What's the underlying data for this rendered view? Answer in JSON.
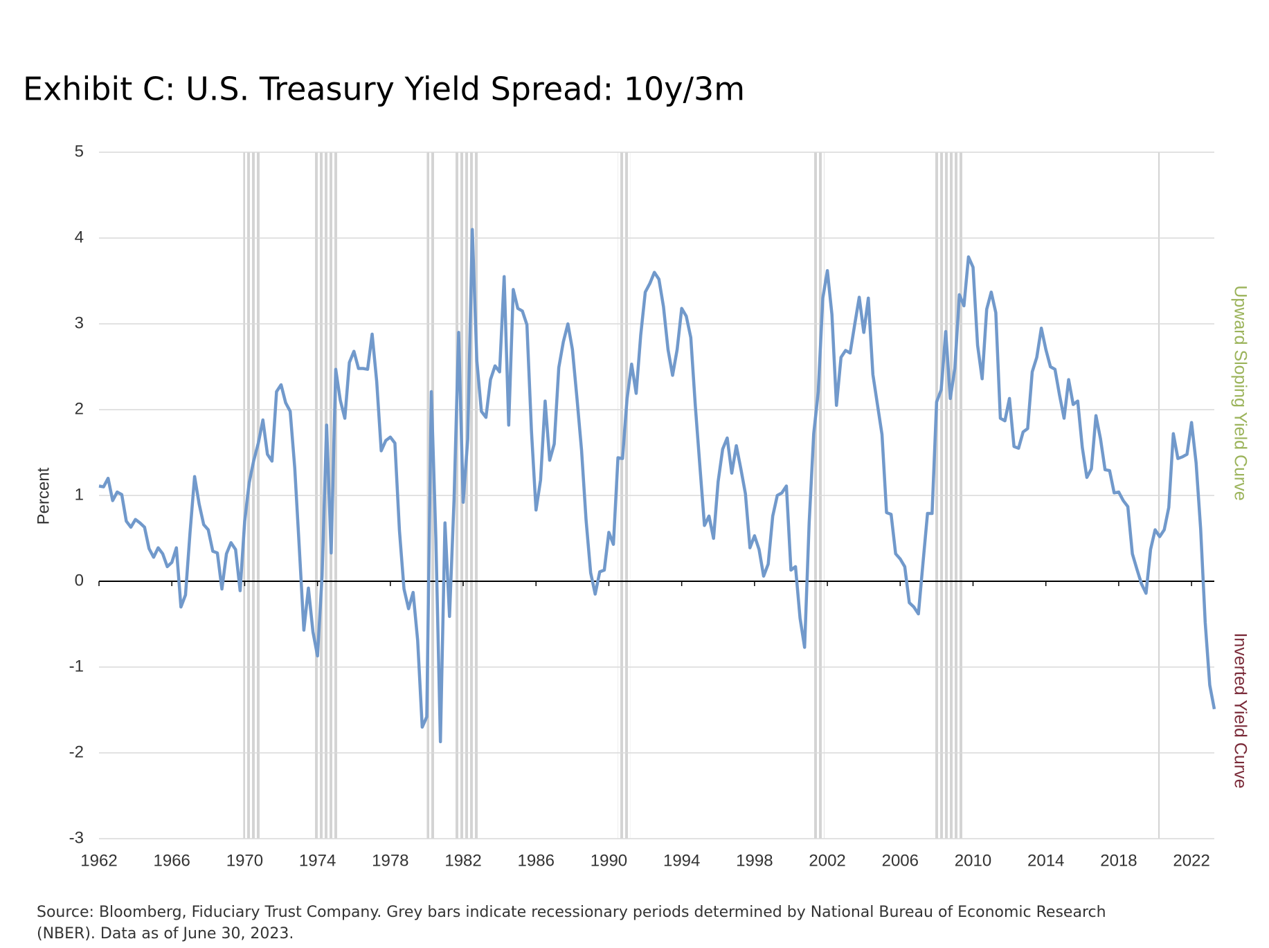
{
  "chart_data": {
    "type": "line",
    "title": "Exhibit C: U.S. Treasury Yield Spread: 10y/3m",
    "ylabel": "Percent",
    "annotations": [
      "Upward Sloping Yield Curve",
      "Inverted Yield Curve"
    ],
    "source": [
      "Source: Bloomberg, Fiduciary Trust Company. Grey bars indicate recessionary periods determined by National Bureau of Economic Research",
      "(NBER). Data as of June 30, 2023."
    ],
    "xlim": [
      1962,
      2023.25
    ],
    "xticks": [
      {
        "value": 1962,
        "label": "1962"
      },
      {
        "value": 1966,
        "label": "1966"
      },
      {
        "value": 1970,
        "label": "1970"
      },
      {
        "value": 1974,
        "label": "1974"
      },
      {
        "value": 1978,
        "label": "1978"
      },
      {
        "value": 1982,
        "label": "1982"
      },
      {
        "value": 1986,
        "label": "1986"
      },
      {
        "value": 1990,
        "label": "1990"
      },
      {
        "value": 1994,
        "label": "1994"
      },
      {
        "value": 1998,
        "label": "1998"
      },
      {
        "value": 2002,
        "label": "2002"
      },
      {
        "value": 2006,
        "label": "2006"
      },
      {
        "value": 2010,
        "label": "2010"
      },
      {
        "value": 2014,
        "label": "2014"
      },
      {
        "value": 2018,
        "label": "2018"
      },
      {
        "value": 2022,
        "label": "2022"
      }
    ],
    "ylim": [
      -3,
      5
    ],
    "yticks": [
      -3,
      -2,
      -1,
      0,
      1,
      2,
      3,
      4,
      5
    ],
    "grid": true,
    "recession_color": "#d4d4d4",
    "recessions": [
      [
        1969.92,
        1970.83
      ],
      [
        1973.83,
        1975.17
      ],
      [
        1980.0,
        1980.5
      ],
      [
        1981.5,
        1982.83
      ],
      [
        1990.5,
        1991.17
      ],
      [
        2001.17,
        2001.83
      ],
      [
        2007.92,
        2009.42
      ],
      [
        2020.08,
        2020.25
      ]
    ],
    "x": [
      1962,
      1962.25,
      1962.5,
      1962.75,
      1963,
      1963.25,
      1963.5,
      1963.75,
      1964,
      1964.25,
      1964.5,
      1964.75,
      1965,
      1965.25,
      1965.5,
      1965.75,
      1966,
      1966.25,
      1966.5,
      1966.75,
      1967,
      1967.25,
      1967.5,
      1967.75,
      1968,
      1968.25,
      1968.5,
      1968.75,
      1969,
      1969.25,
      1969.5,
      1969.75,
      1970,
      1970.25,
      1970.5,
      1970.75,
      1971,
      1971.25,
      1971.5,
      1971.75,
      1972,
      1972.25,
      1972.5,
      1972.75,
      1973,
      1973.25,
      1973.5,
      1973.75,
      1974,
      1974.25,
      1974.5,
      1974.75,
      1975,
      1975.25,
      1975.5,
      1975.75,
      1976,
      1976.25,
      1976.5,
      1976.75,
      1977,
      1977.25,
      1977.5,
      1977.75,
      1978,
      1978.25,
      1978.5,
      1978.75,
      1979,
      1979.25,
      1979.5,
      1979.75,
      1980,
      1980.25,
      1980.5,
      1980.75,
      1981,
      1981.25,
      1981.5,
      1981.75,
      1982,
      1982.25,
      1982.5,
      1982.75,
      1983,
      1983.25,
      1983.5,
      1983.75,
      1984,
      1984.25,
      1984.5,
      1984.75,
      1985,
      1985.25,
      1985.5,
      1985.75,
      1986,
      1986.25,
      1986.5,
      1986.75,
      1987,
      1987.25,
      1987.5,
      1987.75,
      1988,
      1988.25,
      1988.5,
      1988.75,
      1989,
      1989.25,
      1989.5,
      1989.75,
      1990,
      1990.25,
      1990.5,
      1990.75,
      1991,
      1991.25,
      1991.5,
      1991.75,
      1992,
      1992.25,
      1992.5,
      1992.75,
      1993,
      1993.25,
      1993.5,
      1993.75,
      1994,
      1994.25,
      1994.5,
      1994.75,
      1995,
      1995.25,
      1995.5,
      1995.75,
      1996,
      1996.25,
      1996.5,
      1996.75,
      1997,
      1997.25,
      1997.5,
      1997.75,
      1998,
      1998.25,
      1998.5,
      1998.75,
      1999,
      1999.25,
      1999.5,
      1999.75,
      2000,
      2000.25,
      2000.5,
      2000.75,
      2001,
      2001.25,
      2001.5,
      2001.75,
      2002,
      2002.25,
      2002.5,
      2002.75,
      2003,
      2003.25,
      2003.5,
      2003.75,
      2004,
      2004.25,
      2004.5,
      2004.75,
      2005,
      2005.25,
      2005.5,
      2005.75,
      2006,
      2006.25,
      2006.5,
      2006.75,
      2007,
      2007.25,
      2007.5,
      2007.75,
      2008,
      2008.25,
      2008.5,
      2008.75,
      2009,
      2009.25,
      2009.5,
      2009.75,
      2010,
      2010.25,
      2010.5,
      2010.75,
      2011,
      2011.25,
      2011.5,
      2011.75,
      2012,
      2012.25,
      2012.5,
      2012.75,
      2013,
      2013.25,
      2013.5,
      2013.75,
      2014,
      2014.25,
      2014.5,
      2014.75,
      2015,
      2015.25,
      2015.5,
      2015.75,
      2016,
      2016.25,
      2016.5,
      2016.75,
      2017,
      2017.25,
      2017.5,
      2017.75,
      2018,
      2018.25,
      2018.5,
      2018.75,
      2019,
      2019.25,
      2019.5,
      2019.75,
      2020,
      2020.25,
      2020.5,
      2020.75,
      2021,
      2021.25,
      2021.5,
      2021.75,
      2022,
      2022.25,
      2022.5,
      2022.75,
      2023,
      2023.25
    ],
    "series": [
      {
        "name": "10y/3m spread",
        "color": "#7199cb",
        "values": [
          1.11,
          1.1,
          1.2,
          0.94,
          1.04,
          1.01,
          0.7,
          0.63,
          0.72,
          0.68,
          0.63,
          0.38,
          0.28,
          0.39,
          0.32,
          0.17,
          0.22,
          0.39,
          -0.3,
          -0.16,
          0.57,
          1.22,
          0.9,
          0.66,
          0.6,
          0.35,
          0.33,
          -0.09,
          0.32,
          0.45,
          0.37,
          -0.11,
          0.7,
          1.15,
          1.41,
          1.61,
          1.88,
          1.48,
          1.4,
          2.21,
          2.29,
          2.08,
          1.98,
          1.32,
          0.39,
          -0.57,
          -0.08,
          -0.59,
          -0.87,
          0.06,
          1.82,
          0.33,
          2.47,
          2.11,
          1.9,
          2.55,
          2.68,
          2.48,
          2.48,
          2.47,
          2.88,
          2.33,
          1.52,
          1.64,
          1.68,
          1.61,
          0.59,
          -0.09,
          -0.32,
          -0.13,
          -0.69,
          -1.7,
          -1.58,
          2.21,
          0.5,
          -1.87,
          0.68,
          -0.41,
          0.96,
          2.9,
          0.92,
          1.66,
          4.1,
          2.57,
          1.98,
          1.91,
          2.35,
          2.51,
          2.44,
          3.55,
          1.82,
          3.4,
          3.18,
          3.15,
          2.99,
          1.75,
          0.83,
          1.18,
          2.1,
          1.41,
          1.6,
          2.49,
          2.79,
          3.0,
          2.7,
          2.13,
          1.53,
          0.71,
          0.1,
          -0.15,
          0.11,
          0.13,
          0.57,
          0.43,
          1.44,
          1.43,
          2.13,
          2.53,
          2.19,
          2.87,
          3.37,
          3.47,
          3.6,
          3.52,
          3.2,
          2.7,
          2.4,
          2.7,
          3.18,
          3.09,
          2.84,
          2.04,
          1.34,
          0.65,
          0.76,
          0.5,
          1.16,
          1.54,
          1.67,
          1.26,
          1.58,
          1.31,
          1.02,
          0.39,
          0.53,
          0.37,
          0.06,
          0.2,
          0.76,
          1.0,
          1.03,
          1.11,
          0.13,
          0.17,
          -0.43,
          -0.77,
          0.68,
          1.72,
          2.21,
          3.3,
          3.62,
          3.11,
          2.05,
          2.61,
          2.69,
          2.66,
          2.99,
          3.31,
          2.9,
          3.3,
          2.41,
          2.06,
          1.71,
          0.8,
          0.78,
          0.32,
          0.26,
          0.17,
          -0.25,
          -0.3,
          -0.38,
          0.21,
          0.79,
          0.79,
          2.09,
          2.23,
          2.91,
          2.13,
          2.48,
          3.34,
          3.21,
          3.78,
          3.66,
          2.75,
          2.36,
          3.17,
          3.37,
          3.13,
          1.9,
          1.87,
          2.13,
          1.57,
          1.55,
          1.74,
          1.78,
          2.44,
          2.61,
          2.95,
          2.7,
          2.5,
          2.47,
          2.17,
          1.9,
          2.35,
          2.06,
          2.1,
          1.56,
          1.21,
          1.31,
          1.93,
          1.66,
          1.3,
          1.29,
          1.03,
          1.04,
          0.94,
          0.87,
          0.32,
          0.14,
          -0.03,
          -0.14,
          0.37,
          0.6,
          0.52,
          0.6,
          0.86,
          1.72,
          1.43,
          1.45,
          1.48,
          1.85,
          1.38,
          0.61,
          -0.48,
          -1.21,
          -1.49
        ]
      }
    ]
  }
}
